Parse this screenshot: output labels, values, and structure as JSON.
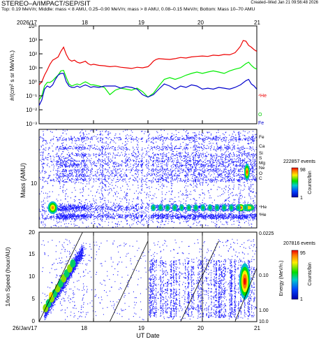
{
  "header": {
    "title": "STEREO–A/IMPACT/SEP/SIT",
    "created": "Created–Wed Jan 21 09:56:48 2026",
    "subtitle": "Top: 0.19 MeV/n; Middle: mass < 8 AMU, 0.25–0.90 MeV/n; mass > 8 AMU, 0.08–0.15 MeV/n; Bottom: Mass 10–70 AMU"
  },
  "colors": {
    "red": "#ee0000",
    "green": "#00ee00",
    "blue": "#0000cc",
    "density": "#1a1aff"
  },
  "chart_data": [
    {
      "type": "line",
      "panel": "top",
      "ylabel": "#/(cm² s sr MeV/n.)",
      "yscale": "log",
      "ylim": [
        0.001,
        10000
      ],
      "yticks": [
        "10⁻³",
        "10⁻²",
        "10⁻¹",
        "10⁰",
        "10¹",
        "10²",
        "10³",
        "10⁴"
      ],
      "xlim": [
        17,
        21
      ],
      "xticks": [
        "2026/17",
        "18",
        "19",
        "20",
        "21"
      ],
      "series": [
        {
          "name": "⁴He",
          "color": "#ee0000",
          "x": [
            17.0,
            17.05,
            17.1,
            17.15,
            17.2,
            17.25,
            17.3,
            17.35,
            17.4,
            17.45,
            17.5,
            17.55,
            17.6,
            17.65,
            17.7,
            17.75,
            17.8,
            17.85,
            17.9,
            17.95,
            18.0,
            18.1,
            18.2,
            18.3,
            18.4,
            18.5,
            18.6,
            18.7,
            18.8,
            18.9,
            19.0,
            19.05,
            19.1,
            19.15,
            19.2,
            19.3,
            19.4,
            19.5,
            19.6,
            19.7,
            19.8,
            19.9,
            20.0,
            20.1,
            20.2,
            20.3,
            20.4,
            20.5,
            20.6,
            20.65,
            20.7,
            20.75,
            20.8,
            20.85,
            20.9,
            20.95,
            21.0
          ],
          "values": [
            0.6,
            1,
            3,
            7,
            18,
            35,
            45,
            60,
            150,
            300,
            90,
            40,
            30,
            35,
            25,
            22,
            25,
            30,
            20,
            16,
            18,
            15,
            14,
            12,
            13,
            11,
            10,
            9,
            11,
            10,
            12,
            18,
            30,
            40,
            45,
            42,
            40,
            45,
            55,
            50,
            60,
            65,
            70,
            65,
            80,
            75,
            90,
            85,
            120,
            200,
            350,
            900,
            800,
            400,
            300,
            200,
            150
          ]
        },
        {
          "name": "O",
          "color": "#00ee00",
          "x": [
            17.0,
            17.05,
            17.1,
            17.15,
            17.2,
            17.25,
            17.3,
            17.35,
            17.4,
            17.45,
            17.5,
            17.55,
            17.6,
            17.65,
            17.7,
            17.75,
            17.8,
            17.85,
            17.9,
            17.95,
            18.0,
            18.1,
            18.2,
            18.3,
            18.4,
            18.5,
            18.6,
            18.7,
            18.8,
            18.9,
            19.0,
            19.1,
            19.2,
            19.3,
            19.4,
            19.5,
            19.6,
            19.7,
            19.8,
            19.9,
            20.0,
            20.1,
            20.2,
            20.3,
            20.4,
            20.5,
            20.6,
            20.7,
            20.8,
            20.85,
            20.9,
            20.95,
            21.0
          ],
          "values": [
            0.05,
            0.1,
            0.5,
            0.9,
            0.9,
            1.2,
            2,
            3,
            6,
            6.5,
            2,
            0.7,
            0.5,
            0.6,
            0.7,
            0.6,
            0.8,
            1.0,
            0.8,
            0.6,
            0.6,
            0.5,
            0.4,
            0.12,
            0.25,
            0.35,
            0.3,
            0.25,
            0.35,
            0.2,
            0.08,
            0.15,
            0.5,
            1.5,
            2,
            1.5,
            2,
            3,
            4,
            5,
            4,
            5,
            6,
            5,
            4,
            6,
            8,
            10,
            20,
            25,
            15,
            10,
            8
          ]
        },
        {
          "name": "Fe",
          "color": "#0000cc",
          "x": [
            17.0,
            17.05,
            17.1,
            17.15,
            17.2,
            17.25,
            17.3,
            17.35,
            17.4,
            17.45,
            17.5,
            17.55,
            17.6,
            17.65,
            17.7,
            17.75,
            17.8,
            17.85,
            17.9,
            17.95,
            18.0,
            18.1,
            18.2,
            18.3,
            18.4,
            18.5,
            18.6,
            18.7,
            18.8,
            18.9,
            19.0,
            19.1,
            19.2,
            19.3,
            19.4,
            19.5,
            19.6,
            19.7,
            19.8,
            19.9,
            20.0,
            20.1,
            20.2,
            20.3,
            20.4,
            20.5,
            20.6,
            20.7,
            20.8,
            20.85,
            20.9,
            20.95,
            21.0
          ],
          "values": [
            0.02,
            0.05,
            0.3,
            0.5,
            0.4,
            0.6,
            1.5,
            3,
            4,
            4,
            1,
            0.5,
            0.4,
            0.4,
            0.5,
            0.4,
            0.5,
            0.6,
            0.5,
            0.4,
            0.45,
            0.4,
            0.5,
            0.5,
            0.5,
            0.35,
            0.45,
            0.4,
            0.3,
            0.12,
            0.08,
            0.12,
            0.3,
            0.7,
            0.5,
            0.3,
            0.5,
            0.4,
            0.6,
            0.5,
            0.3,
            0.35,
            0.3,
            0.4,
            0.35,
            0.3,
            0.4,
            0.6,
            1.2,
            1.5,
            0.7,
            0.5,
            0.3
          ]
        }
      ]
    },
    {
      "type": "heatmap",
      "panel": "middle",
      "ylabel": "Mass (AMU)",
      "ytick_label": "10",
      "events": "222857 events",
      "colorbar": {
        "min": "1",
        "max": "98",
        "label": "Counts/bin"
      },
      "species_labels": [
        "Fe",
        "Ca",
        "Si",
        "S",
        "Mg",
        "Ne",
        "O",
        "C",
        "⁴He",
        "³He"
      ],
      "xlim": [
        17,
        21
      ]
    },
    {
      "type": "heatmap",
      "panel": "bottom",
      "ylabel": "1/Ion Speed (hour/AU)",
      "ylim": [
        0,
        20
      ],
      "yticks": [
        "0",
        "5",
        "10",
        "15",
        "20"
      ],
      "energy_axis_label": "Energy (MeV/n.)",
      "energy_ticks": [
        "0.0225",
        "0.10",
        "1.00",
        "10.0"
      ],
      "events": "207816 events",
      "colorbar": {
        "min": "1",
        "max": "95",
        "label": "Counts/bin"
      },
      "xlim": [
        17,
        21
      ],
      "xticks": [
        "26/Jan/17",
        "18",
        "19",
        "20",
        "21"
      ],
      "xlabel": "UT Date"
    }
  ]
}
